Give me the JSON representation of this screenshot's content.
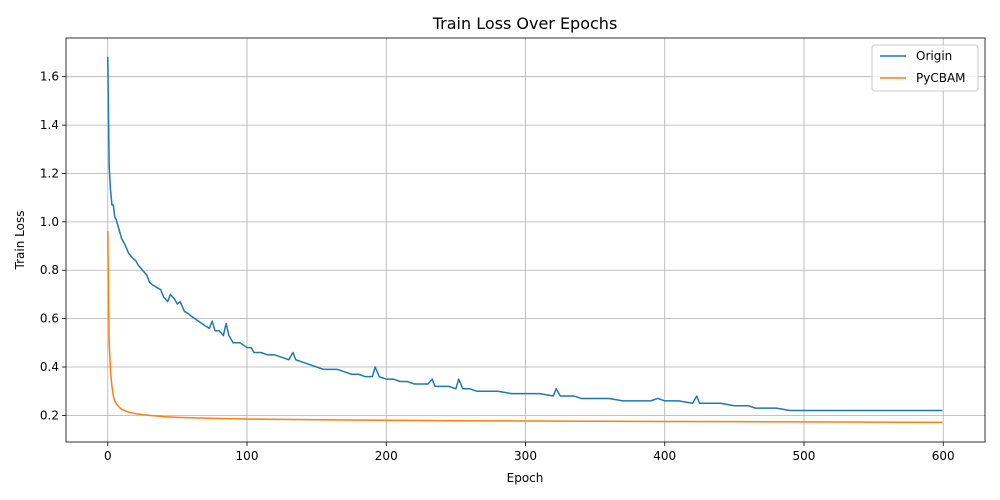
{
  "chart_data": {
    "type": "line",
    "title": "Train Loss Over Epochs",
    "xlabel": "Epoch",
    "ylabel": "Train Loss",
    "xlim": [
      -30,
      630
    ],
    "ylim": [
      0.09,
      1.76
    ],
    "xticks": [
      0,
      100,
      200,
      300,
      400,
      500,
      600
    ],
    "xtick_labels": [
      "0",
      "100",
      "200",
      "300",
      "400",
      "500",
      "600"
    ],
    "yticks": [
      0.2,
      0.4,
      0.6,
      0.8,
      1.0,
      1.2,
      1.4,
      1.6
    ],
    "ytick_labels": [
      "0.2",
      "0.4",
      "0.6",
      "0.8",
      "1.0",
      "1.2",
      "1.4",
      "1.6"
    ],
    "grid": true,
    "legend_position": "top-right",
    "series": [
      {
        "name": "Origin",
        "color": "#1f77b4",
        "x": [
          0,
          1,
          2,
          3,
          4,
          5,
          6,
          8,
          10,
          12,
          15,
          18,
          20,
          22,
          25,
          28,
          30,
          32,
          35,
          38,
          40,
          43,
          45,
          48,
          50,
          52,
          55,
          58,
          60,
          65,
          70,
          73,
          75,
          77,
          80,
          83,
          85,
          87,
          90,
          95,
          100,
          103,
          105,
          110,
          115,
          120,
          125,
          130,
          133,
          135,
          140,
          145,
          150,
          155,
          160,
          165,
          170,
          175,
          180,
          185,
          190,
          192,
          195,
          200,
          205,
          210,
          215,
          220,
          225,
          230,
          233,
          235,
          240,
          245,
          250,
          252,
          255,
          260,
          265,
          270,
          275,
          280,
          290,
          300,
          310,
          320,
          322,
          325,
          330,
          335,
          340,
          350,
          360,
          370,
          380,
          390,
          395,
          400,
          410,
          420,
          423,
          425,
          430,
          440,
          450,
          460,
          465,
          470,
          480,
          490,
          500,
          510,
          520,
          530,
          540,
          550,
          560,
          570,
          580,
          590,
          599
        ],
        "y": [
          1.68,
          1.23,
          1.13,
          1.07,
          1.07,
          1.02,
          1.01,
          0.97,
          0.93,
          0.91,
          0.87,
          0.85,
          0.84,
          0.82,
          0.8,
          0.78,
          0.75,
          0.74,
          0.73,
          0.72,
          0.69,
          0.67,
          0.7,
          0.68,
          0.66,
          0.67,
          0.63,
          0.62,
          0.61,
          0.59,
          0.57,
          0.56,
          0.59,
          0.55,
          0.55,
          0.53,
          0.58,
          0.53,
          0.5,
          0.5,
          0.48,
          0.48,
          0.46,
          0.46,
          0.45,
          0.45,
          0.44,
          0.43,
          0.46,
          0.43,
          0.42,
          0.41,
          0.4,
          0.39,
          0.39,
          0.39,
          0.38,
          0.37,
          0.37,
          0.36,
          0.36,
          0.4,
          0.36,
          0.35,
          0.35,
          0.34,
          0.34,
          0.33,
          0.33,
          0.33,
          0.35,
          0.32,
          0.32,
          0.32,
          0.31,
          0.35,
          0.31,
          0.31,
          0.3,
          0.3,
          0.3,
          0.3,
          0.29,
          0.29,
          0.29,
          0.28,
          0.31,
          0.28,
          0.28,
          0.28,
          0.27,
          0.27,
          0.27,
          0.26,
          0.26,
          0.26,
          0.27,
          0.26,
          0.26,
          0.25,
          0.28,
          0.25,
          0.25,
          0.25,
          0.24,
          0.24,
          0.23,
          0.23,
          0.23,
          0.22,
          0.22,
          0.22,
          0.22,
          0.22,
          0.22,
          0.22,
          0.22,
          0.22,
          0.22,
          0.22,
          0.22
        ]
      },
      {
        "name": "PyCBAM",
        "color": "#ff7f0e",
        "x": [
          0,
          0.5,
          1,
          2,
          3,
          4,
          5,
          6,
          8,
          10,
          12,
          15,
          20,
          25,
          30,
          40,
          50,
          60,
          80,
          100,
          150,
          200,
          250,
          300,
          350,
          400,
          450,
          500,
          550,
          599
        ],
        "y": [
          0.96,
          0.7,
          0.5,
          0.38,
          0.32,
          0.28,
          0.26,
          0.25,
          0.235,
          0.225,
          0.22,
          0.213,
          0.207,
          0.203,
          0.2,
          0.195,
          0.192,
          0.19,
          0.187,
          0.185,
          0.182,
          0.18,
          0.178,
          0.177,
          0.176,
          0.175,
          0.174,
          0.173,
          0.172,
          0.171
        ]
      }
    ]
  }
}
